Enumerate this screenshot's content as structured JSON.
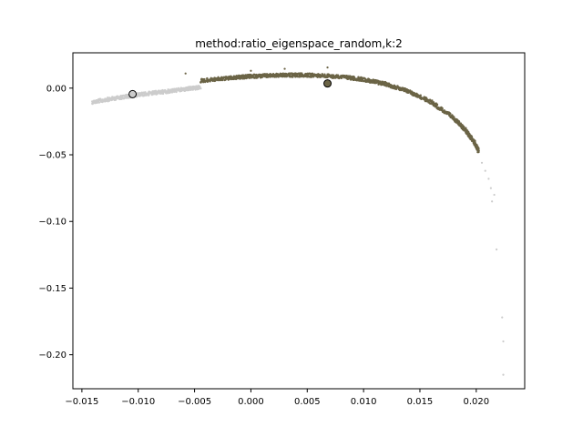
{
  "chart_data": {
    "type": "scatter",
    "title": "method:ratio_eigenspace_random,k:2",
    "xlabel": "",
    "ylabel": "",
    "xlim": [
      -0.0158,
      0.0243
    ],
    "ylim": [
      -0.2255,
      0.0265
    ],
    "x_ticks": [
      -0.015,
      -0.01,
      -0.005,
      0.0,
      0.005,
      0.01,
      0.015,
      0.02
    ],
    "x_tick_labels": [
      "−0.015",
      "−0.010",
      "−0.005",
      "0.000",
      "0.005",
      "0.010",
      "0.015",
      "0.020"
    ],
    "y_ticks": [
      0.0,
      -0.05,
      -0.1,
      -0.15,
      -0.2
    ],
    "y_tick_labels": [
      "0.00",
      "−0.05",
      "−0.10",
      "−0.15",
      "−0.20"
    ],
    "grid": false,
    "colors": {
      "light": "#cccccc",
      "dark": "#6b6446",
      "marker_light": "#cccccc",
      "marker_dark": "#6b6446",
      "edge": "#000000"
    },
    "series": [
      {
        "color": "#cccccc",
        "kind": "curve-band",
        "curve": [
          [
            -0.0141,
            -0.0105
          ],
          [
            -0.012,
            -0.0075
          ],
          [
            -0.01,
            -0.005
          ],
          [
            -0.008,
            -0.003
          ],
          [
            -0.006,
            -0.001
          ],
          [
            -0.0045,
            0.0005
          ]
        ],
        "outliers": [
          [
            0.0205,
            -0.056
          ],
          [
            0.0208,
            -0.062
          ],
          [
            0.0211,
            -0.068
          ],
          [
            0.0213,
            -0.075
          ],
          [
            0.0216,
            -0.08
          ],
          [
            0.0214,
            -0.085
          ],
          [
            0.0218,
            -0.121
          ],
          [
            0.0223,
            -0.172
          ],
          [
            0.0224,
            -0.19
          ],
          [
            0.0224,
            -0.215
          ]
        ]
      },
      {
        "color": "#6b6446",
        "kind": "curve-band",
        "curve": [
          [
            -0.0045,
            0.0055
          ],
          [
            -0.002,
            0.0075
          ],
          [
            0.0,
            0.0088
          ],
          [
            0.002,
            0.0095
          ],
          [
            0.004,
            0.0098
          ],
          [
            0.006,
            0.0095
          ],
          [
            0.008,
            0.0085
          ],
          [
            0.01,
            0.0065
          ],
          [
            0.012,
            0.003
          ],
          [
            0.014,
            -0.0025
          ],
          [
            0.016,
            -0.0105
          ],
          [
            0.018,
            -0.0225
          ],
          [
            0.019,
            -0.031
          ],
          [
            0.0198,
            -0.04
          ],
          [
            0.0202,
            -0.047
          ]
        ],
        "outliers": [
          [
            -0.0058,
            0.011
          ],
          [
            0.0,
            0.013
          ],
          [
            0.0068,
            0.0155
          ],
          [
            0.003,
            0.0145
          ]
        ]
      }
    ],
    "highlighted_points": [
      {
        "x": -0.0105,
        "y": -0.0045,
        "color": "#cccccc"
      },
      {
        "x": 0.0068,
        "y": 0.0035,
        "color": "#6b6446"
      }
    ]
  }
}
